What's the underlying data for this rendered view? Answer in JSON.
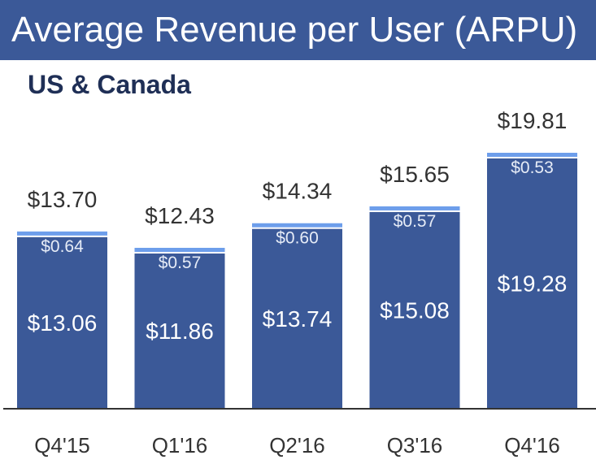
{
  "header": {
    "title": "Average Revenue per User (ARPU)",
    "subtitle": "US & Canada"
  },
  "colors": {
    "banner": "#3b5998",
    "bar_main": "#3b5998",
    "bar_top": "#6d9eeb",
    "axis": "#333333"
  },
  "chart_data": {
    "type": "bar",
    "stacked": true,
    "categories": [
      "Q4'15",
      "Q1'16",
      "Q2'16",
      "Q3'16",
      "Q4'16"
    ],
    "series": [
      {
        "values": [
          13.06,
          11.86,
          13.74,
          15.08,
          19.28
        ],
        "labels": [
          "$13.06",
          "$11.86",
          "$13.74",
          "$15.08",
          "$19.28"
        ]
      },
      {
        "values": [
          0.64,
          0.57,
          0.6,
          0.57,
          0.53
        ],
        "labels": [
          "$0.64",
          "$0.57",
          "$0.60",
          "$0.57",
          "$0.53"
        ]
      }
    ],
    "totals": [
      13.7,
      12.43,
      14.34,
      15.65,
      19.81
    ],
    "total_labels": [
      "$13.70",
      "$12.43",
      "$14.34",
      "$15.65",
      "$19.81"
    ],
    "title": "Average Revenue per User (ARPU)",
    "subtitle": "US & Canada",
    "xlabel": "",
    "ylabel": "",
    "ylim": [
      0,
      20
    ],
    "grid": false,
    "legend": "none"
  }
}
